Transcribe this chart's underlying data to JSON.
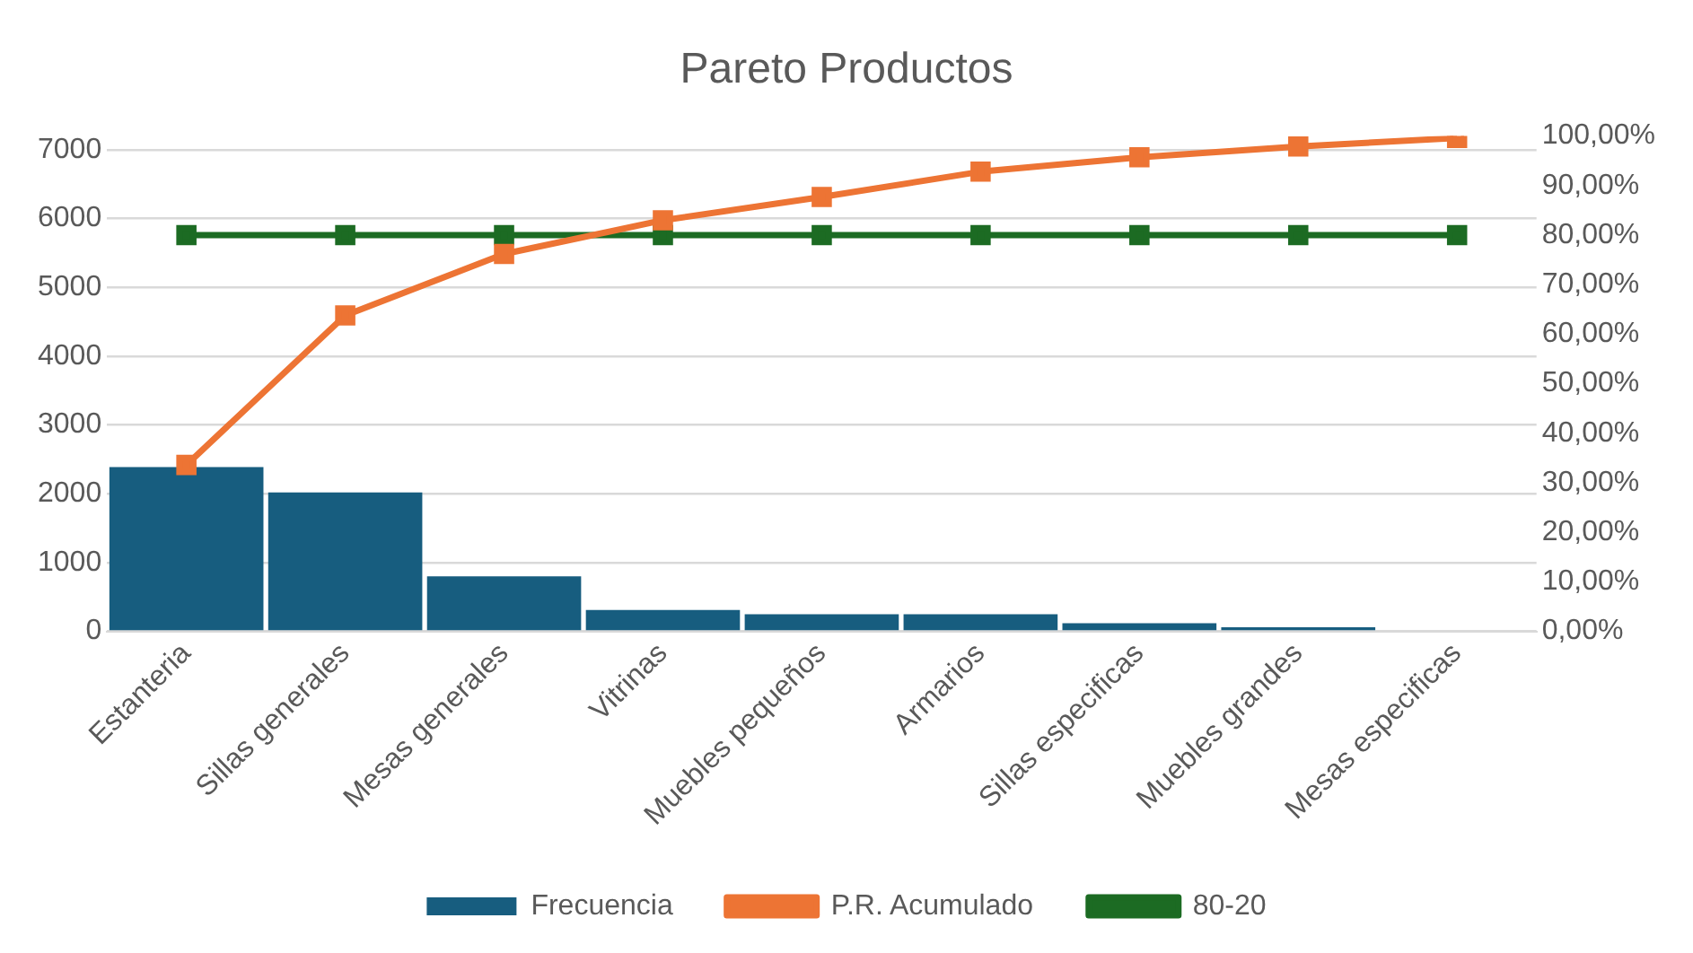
{
  "chart_data": {
    "type": "bar",
    "title": "Pareto Productos",
    "categories": [
      "Estanteria",
      "Sillas generales",
      "Mesas generales",
      "Vitrinas",
      "Muebles pequeños",
      "Armarios",
      "Sillas especificas",
      "Muebles grandes",
      "Mesas especificas"
    ],
    "series": [
      {
        "name": "Frecuencia",
        "color": "#175d7f",
        "values": [
          2390,
          2020,
          800,
          310,
          250,
          250,
          120,
          60,
          0
        ]
      },
      {
        "name": "P.R. Acumulado",
        "type": "line",
        "axis": "y2",
        "color": "#ed7434",
        "marker": "square",
        "values": [
          33.6,
          63.8,
          76.2,
          83.0,
          87.7,
          92.8,
          95.7,
          97.9,
          99.6
        ]
      },
      {
        "name": "80-20",
        "type": "line",
        "axis": "y2",
        "color": "#1c6b23",
        "marker": "square",
        "values": [
          80,
          80,
          80,
          80,
          80,
          80,
          80,
          80,
          80
        ]
      }
    ],
    "ylim": [
      0,
      7200
    ],
    "yticks": [
      0,
      1000,
      2000,
      3000,
      4000,
      5000,
      6000,
      7000
    ],
    "y2lim": [
      0,
      100
    ],
    "y2ticks": [
      {
        "value": 0,
        "label": "0,00%"
      },
      {
        "value": 10,
        "label": "10,00%"
      },
      {
        "value": 20,
        "label": "20,00%"
      },
      {
        "value": 30,
        "label": "30,00%"
      },
      {
        "value": 40,
        "label": "40,00%"
      },
      {
        "value": 50,
        "label": "50,00%"
      },
      {
        "value": 60,
        "label": "60,00%"
      },
      {
        "value": 70,
        "label": "70,00%"
      },
      {
        "value": 80,
        "label": "80,00%"
      },
      {
        "value": 90,
        "label": "90,00%"
      },
      {
        "value": 100,
        "label": "100,00%"
      }
    ],
    "grid": "y",
    "legend": "bottom"
  }
}
